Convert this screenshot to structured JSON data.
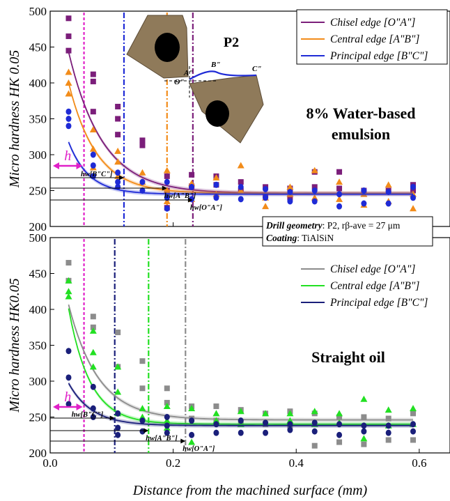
{
  "chart_data": [
    {
      "type": "scatter",
      "panel": "top",
      "annotation": [
        "8% Water-based",
        "emulsion"
      ],
      "ylabel": "Micro hardness HK 0.05",
      "xlabel": "",
      "xlim": [
        0,
        0.65
      ],
      "ylim": [
        200,
        500
      ],
      "yticks": [
        200,
        250,
        300,
        350,
        400,
        450,
        500
      ],
      "legend_position": "top-right",
      "inset": {
        "label": "P2",
        "points": [
          "A\"",
          "B\"",
          "C\"",
          "Θ\""
        ]
      },
      "series": [
        {
          "name": "Chisel edge [O\"A\"]",
          "color": "#7B1E7A",
          "marker": "square",
          "fit": {
            "plateau": 246,
            "amp": 340,
            "tau": 0.055
          },
          "x": [
            0.03,
            0.03,
            0.03,
            0.07,
            0.07,
            0.07,
            0.11,
            0.11,
            0.11,
            0.15,
            0.15,
            0.19,
            0.19,
            0.19,
            0.23,
            0.23,
            0.27,
            0.27,
            0.31,
            0.31,
            0.35,
            0.35,
            0.39,
            0.39,
            0.43,
            0.43,
            0.47,
            0.47,
            0.51,
            0.55,
            0.59,
            0.59
          ],
          "y": [
            490,
            465,
            445,
            412,
            402,
            360,
            367,
            350,
            328,
            320,
            313,
            270,
            250,
            226,
            272,
            256,
            270,
            258,
            262,
            250,
            255,
            243,
            253,
            240,
            276,
            255,
            276,
            253,
            250,
            250,
            258,
            250
          ]
        },
        {
          "name": "Central edge [A\"B\"]",
          "color": "#F28C1A",
          "marker": "triangle",
          "fit": {
            "plateau": 246,
            "amp": 300,
            "tau": 0.045
          },
          "x": [
            0.03,
            0.03,
            0.03,
            0.07,
            0.07,
            0.07,
            0.11,
            0.11,
            0.11,
            0.15,
            0.15,
            0.19,
            0.19,
            0.19,
            0.23,
            0.23,
            0.27,
            0.27,
            0.31,
            0.31,
            0.35,
            0.35,
            0.39,
            0.39,
            0.43,
            0.43,
            0.47,
            0.47,
            0.51,
            0.51,
            0.55,
            0.55,
            0.59,
            0.59
          ],
          "y": [
            415,
            400,
            385,
            335,
            308,
            282,
            305,
            290,
            270,
            275,
            262,
            278,
            250,
            235,
            260,
            238,
            268,
            245,
            285,
            250,
            240,
            228,
            255,
            245,
            278,
            240,
            262,
            238,
            245,
            230,
            258,
            235,
            245,
            225
          ]
        },
        {
          "name": "Principal edge [B\"C\"]",
          "color": "#1F2BD6",
          "marker": "circle",
          "fit": {
            "plateau": 245,
            "amp": 180,
            "tau": 0.033
          },
          "x": [
            0.03,
            0.03,
            0.03,
            0.07,
            0.07,
            0.07,
            0.11,
            0.11,
            0.11,
            0.15,
            0.15,
            0.19,
            0.19,
            0.19,
            0.23,
            0.23,
            0.27,
            0.27,
            0.31,
            0.31,
            0.35,
            0.35,
            0.39,
            0.39,
            0.43,
            0.43,
            0.47,
            0.47,
            0.51,
            0.51,
            0.55,
            0.55,
            0.59,
            0.59
          ],
          "y": [
            360,
            350,
            340,
            300,
            285,
            270,
            275,
            262,
            255,
            262,
            250,
            262,
            240,
            225,
            255,
            238,
            258,
            240,
            255,
            238,
            252,
            240,
            248,
            235,
            250,
            235,
            245,
            228,
            250,
            232,
            248,
            232,
            255,
            240
          ]
        }
      ],
      "thresholds": [
        {
          "label": "h",
          "x": 0.055,
          "color": "#E020C8"
        },
        {
          "label": "hw[B\"C\"]",
          "x": 0.12,
          "color": "#1F2BD6"
        },
        {
          "label": "hw[A\"B\"]",
          "x": 0.19,
          "color": "#F28C1A"
        },
        {
          "label": "hw[O\"A\"]",
          "x": 0.232,
          "color": "#7B1E7A"
        }
      ]
    },
    {
      "type": "scatter",
      "panel": "bottom",
      "annotation": [
        "Straight oil"
      ],
      "ylabel": "Micro hardness HK0.05",
      "xlabel": "Distance from the machined surface (mm)",
      "xlim": [
        0,
        0.65
      ],
      "ylim": [
        200,
        500
      ],
      "yticks": [
        200,
        250,
        300,
        350,
        400,
        450,
        500
      ],
      "xticks": [
        0.0,
        0.2,
        0.4,
        0.6
      ],
      "legend_position": "top-right",
      "series": [
        {
          "name": "Chisel edge [O\"A\"]",
          "color": "#8C8C8C",
          "marker": "square",
          "fit": {
            "plateau": 246,
            "amp": 300,
            "tau": 0.048
          },
          "x": [
            0.03,
            0.03,
            0.07,
            0.07,
            0.11,
            0.11,
            0.15,
            0.15,
            0.19,
            0.19,
            0.23,
            0.23,
            0.27,
            0.27,
            0.31,
            0.31,
            0.35,
            0.35,
            0.39,
            0.39,
            0.43,
            0.43,
            0.47,
            0.47,
            0.51,
            0.51,
            0.55,
            0.55,
            0.59,
            0.59
          ],
          "y": [
            465,
            440,
            390,
            375,
            368,
            320,
            328,
            290,
            290,
            270,
            265,
            248,
            265,
            245,
            260,
            242,
            255,
            240,
            258,
            238,
            255,
            210,
            250,
            215,
            250,
            212,
            248,
            218,
            255,
            218
          ]
        },
        {
          "name": "Central edge [A\"B\"]",
          "color": "#22E022",
          "marker": "triangle",
          "fit": {
            "plateau": 240,
            "amp": 380,
            "tau": 0.035
          },
          "x": [
            0.03,
            0.03,
            0.03,
            0.07,
            0.07,
            0.07,
            0.11,
            0.11,
            0.11,
            0.15,
            0.15,
            0.19,
            0.19,
            0.19,
            0.23,
            0.23,
            0.27,
            0.27,
            0.31,
            0.31,
            0.35,
            0.35,
            0.39,
            0.39,
            0.43,
            0.43,
            0.47,
            0.47,
            0.51,
            0.51,
            0.55,
            0.55,
            0.59,
            0.59
          ],
          "y": [
            440,
            425,
            418,
            370,
            340,
            320,
            320,
            285,
            255,
            262,
            250,
            265,
            245,
            235,
            262,
            215,
            255,
            245,
            258,
            240,
            255,
            242,
            255,
            245,
            258,
            240,
            255,
            242,
            275,
            220,
            260,
            238,
            262,
            240
          ]
        },
        {
          "name": "Principal edge [B\"C\"]",
          "color": "#1A1F7A",
          "marker": "circle",
          "fit": {
            "plateau": 238,
            "amp": 130,
            "tau": 0.038
          },
          "x": [
            0.03,
            0.03,
            0.03,
            0.07,
            0.07,
            0.07,
            0.11,
            0.11,
            0.11,
            0.15,
            0.15,
            0.19,
            0.19,
            0.19,
            0.23,
            0.23,
            0.27,
            0.27,
            0.31,
            0.31,
            0.35,
            0.35,
            0.39,
            0.39,
            0.43,
            0.43,
            0.47,
            0.47,
            0.51,
            0.51,
            0.55,
            0.55,
            0.59,
            0.59
          ],
          "y": [
            342,
            305,
            268,
            292,
            262,
            250,
            255,
            235,
            225,
            245,
            230,
            250,
            238,
            228,
            245,
            225,
            240,
            228,
            245,
            228,
            242,
            228,
            240,
            232,
            242,
            230,
            240,
            225,
            238,
            230,
            238,
            228,
            240,
            230
          ]
        }
      ],
      "thresholds": [
        {
          "label": "h",
          "x": 0.055,
          "color": "#E020C8"
        },
        {
          "label": "hw[B\"C\"]",
          "x": 0.105,
          "color": "#1A1F7A"
        },
        {
          "label": "hw[A\"B\"]",
          "x": 0.16,
          "color": "#22E022"
        },
        {
          "label": "hw[O\"A\"]",
          "x": 0.22,
          "color": "#8C8C8C"
        }
      ]
    }
  ],
  "info_box": {
    "line1_label": "Drill geometry",
    "line1_value": ": P2, rβ-ave = 27 μm",
    "line2_label": "Coating",
    "line2_value": ": TiAlSiN"
  }
}
